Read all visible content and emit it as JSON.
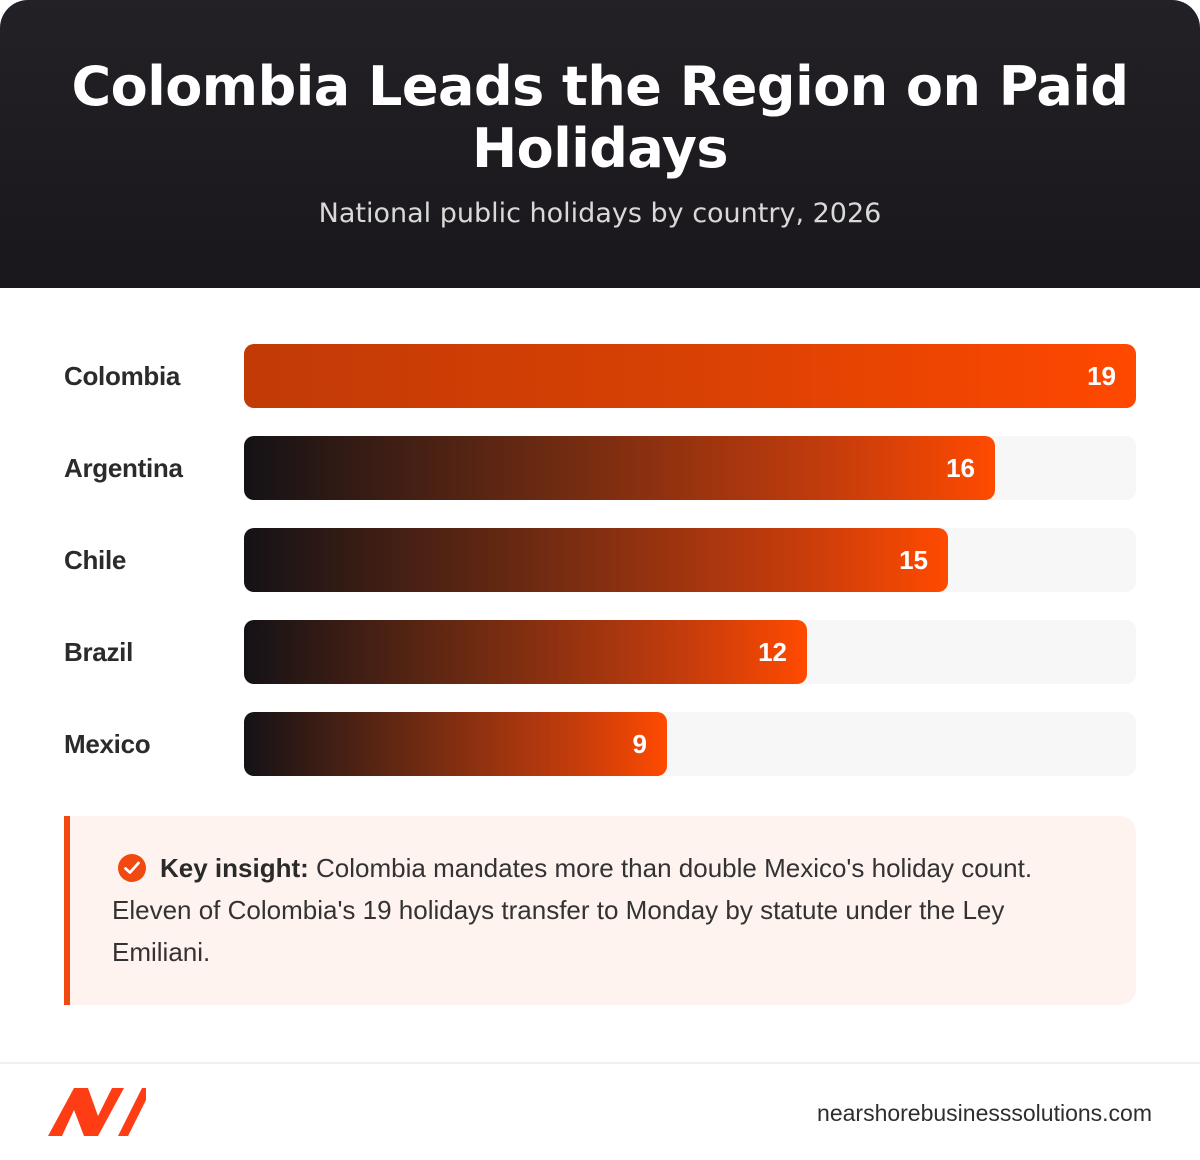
{
  "header": {
    "title": "Colombia Leads the Region on Paid Holidays",
    "subtitle": "National public holidays by country, 2026"
  },
  "chart_data": {
    "type": "bar",
    "orientation": "horizontal",
    "categories": [
      "Colombia",
      "Argentina",
      "Chile",
      "Brazil",
      "Mexico"
    ],
    "values": [
      19,
      16,
      15,
      12,
      9
    ],
    "title": "Colombia Leads the Region on Paid Holidays",
    "subtitle": "National public holidays by country, 2026",
    "xlabel": "",
    "ylabel": "",
    "xlim": [
      0,
      19
    ],
    "grid": false,
    "legend": "none",
    "data_labels": true,
    "colors": {
      "highlight": "#ff4800",
      "gradient_start": "#141216",
      "gradient_end": "#ff4a00",
      "track": "#f7f7f7"
    }
  },
  "insight": {
    "icon": "check-circle-icon",
    "label": "Key insight:",
    "text": "Colombia mandates more than double Mexico's holiday count. Eleven of Colombia's 19 holidays transfer to Monday by statute under the Ley Emiliani."
  },
  "footer": {
    "logo_icon": "nearshore-logo-icon",
    "website": "nearshorebusinesssolutions.com"
  },
  "colors": {
    "header_bg": "#1c1a1e",
    "accent": "#f04a10",
    "insight_bg": "#fff3f0"
  }
}
